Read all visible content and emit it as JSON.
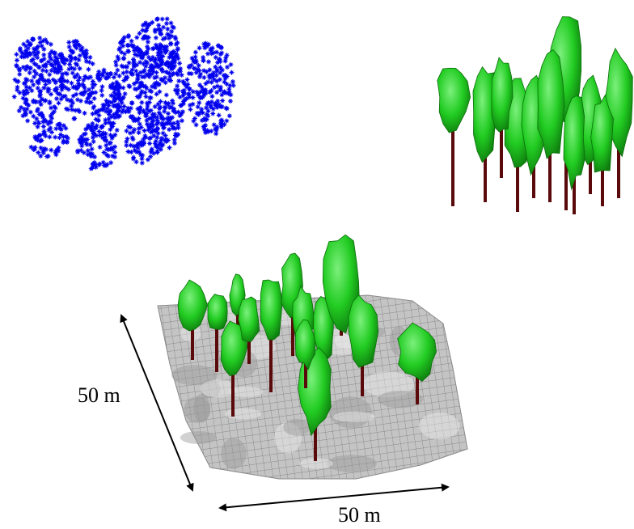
{
  "panels": {
    "point_cloud": {
      "icon": "lidar-point-cloud",
      "color": "#0000ee"
    },
    "tree_models": {
      "icon": "tree-crowns",
      "crown_color": "#22cc22",
      "stem_color": "#5a0a0a"
    },
    "plot_scene": {
      "icon": "terrain-mesh-with-trees",
      "terrain_color": "#b8b8b8",
      "mesh_color": "#6a6a6a"
    }
  },
  "dimensions": {
    "depth_label": "50 m",
    "width_label": "50 m"
  },
  "colors": {
    "arrow": "#000000",
    "background": "#ffffff"
  }
}
